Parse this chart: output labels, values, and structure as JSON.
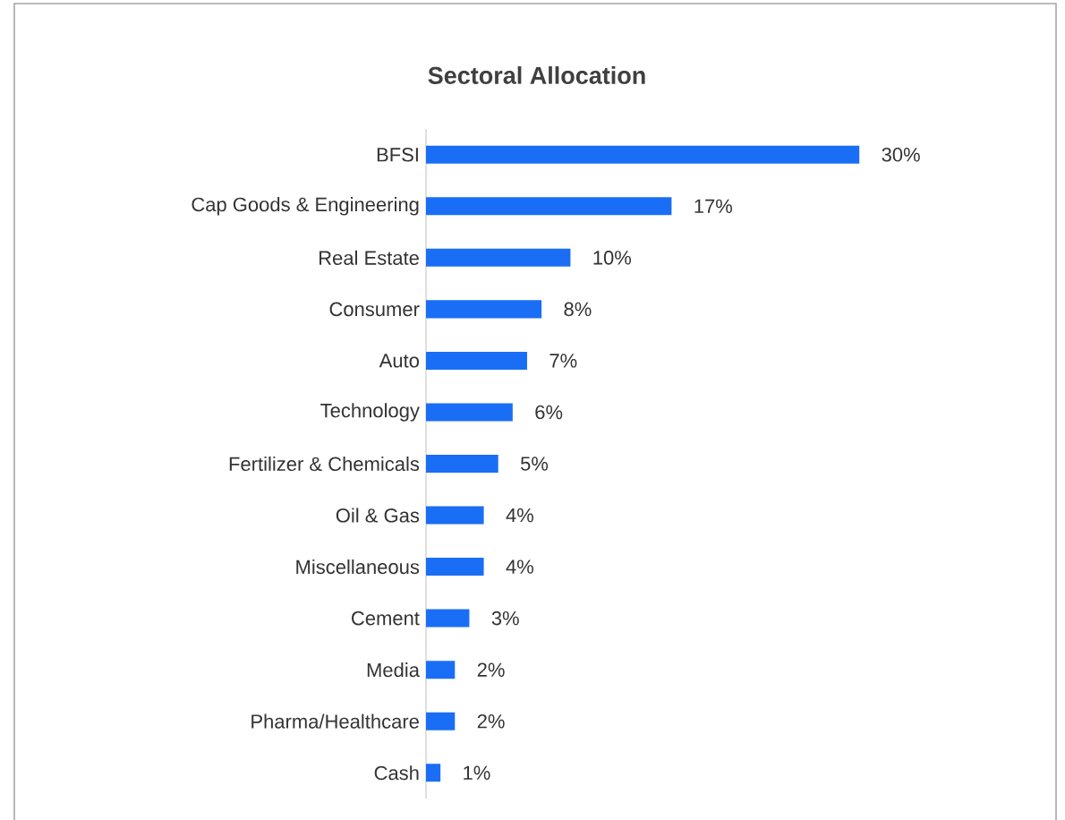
{
  "chart_data": {
    "type": "bar",
    "orientation": "horizontal",
    "title": "Sectoral Allocation",
    "categories": [
      "BFSI",
      "Cap Goods & Engineering",
      "Real Estate",
      "Consumer",
      "Auto",
      "Technology",
      "Fertilizer & Chemicals",
      "Oil & Gas",
      "Miscellaneous",
      "Cement",
      "Media",
      "Pharma/Healthcare",
      "Cash"
    ],
    "values": [
      30,
      17,
      10,
      8,
      7,
      6,
      5,
      4,
      4,
      3,
      2,
      2,
      1
    ],
    "value_labels": [
      "30%",
      "17%",
      "10%",
      "8%",
      "7%",
      "6%",
      "5%",
      "4%",
      "4%",
      "3%",
      "2%",
      "2%",
      "1%"
    ],
    "color": "#1a6ef5"
  }
}
